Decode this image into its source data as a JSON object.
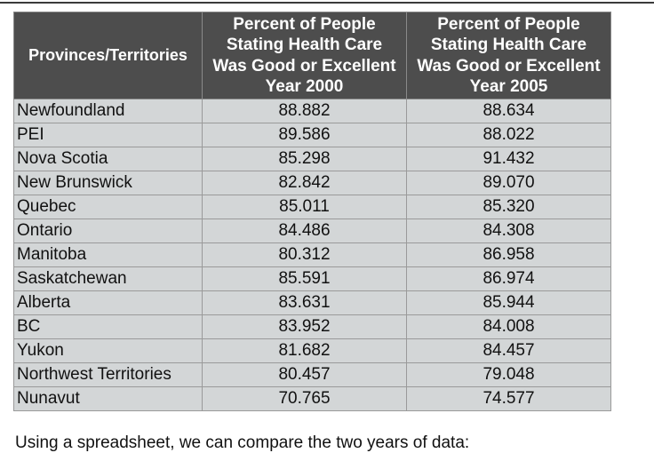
{
  "table": {
    "headers": {
      "province": "Provinces/Territories",
      "year2000": [
        "Percent of People",
        "Stating Health Care",
        "Was Good or Excellent",
        "Year 2000"
      ],
      "year2005": [
        "Percent of People",
        "Stating Health Care",
        "Was Good or Excellent",
        "Year 2005"
      ]
    },
    "rows": [
      {
        "province": "Newfoundland",
        "y2000": "88.882",
        "y2005": "88.634"
      },
      {
        "province": "PEI",
        "y2000": "89.586",
        "y2005": "88.022"
      },
      {
        "province": "Nova Scotia",
        "y2000": "85.298",
        "y2005": "91.432"
      },
      {
        "province": "New Brunswick",
        "y2000": "82.842",
        "y2005": "89.070"
      },
      {
        "province": "Quebec",
        "y2000": "85.011",
        "y2005": "85.320"
      },
      {
        "province": "Ontario",
        "y2000": "84.486",
        "y2005": "84.308"
      },
      {
        "province": "Manitoba",
        "y2000": "80.312",
        "y2005": "86.958"
      },
      {
        "province": "Saskatchewan",
        "y2000": "85.591",
        "y2005": "86.974"
      },
      {
        "province": "Alberta",
        "y2000": "83.631",
        "y2005": "85.944"
      },
      {
        "province": "BC",
        "y2000": "83.952",
        "y2005": "84.008"
      },
      {
        "province": "Yukon",
        "y2000": "81.682",
        "y2005": "84.457"
      },
      {
        "province": "Northwest Territories",
        "y2000": "80.457",
        "y2005": "79.048"
      },
      {
        "province": "Nunavut",
        "y2000": "70.765",
        "y2005": "74.577"
      }
    ]
  },
  "caption": "Using a spreadsheet, we can compare the two years of data:"
}
